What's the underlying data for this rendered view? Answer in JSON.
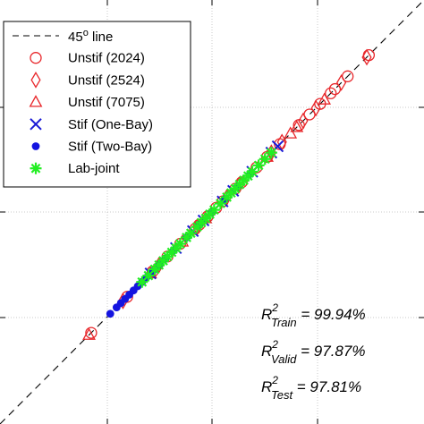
{
  "chart_data": {
    "type": "scatter",
    "title": "",
    "xlabel": "",
    "ylabel": "",
    "xlim": [
      0,
      1
    ],
    "ylim": [
      0,
      1
    ],
    "grid": true,
    "legend_position": "top-left",
    "colors": {
      "unstif": "#e8262a",
      "stif_one": "#1a1ad6",
      "stif_two": "#1414e0",
      "lab": "#22ee22",
      "reference": "#000000"
    },
    "reference_line": {
      "label": "45",
      "label_sup": "o",
      "label_suffix": " line",
      "style": "dashed"
    },
    "series": [
      {
        "name": "Unstif (2024)",
        "marker": "circle",
        "color": "#e8262a",
        "points": [
          [
            0.215,
            0.215
          ],
          [
            0.3,
            0.3
          ],
          [
            0.36,
            0.36
          ],
          [
            0.395,
            0.395
          ],
          [
            0.425,
            0.425
          ],
          [
            0.46,
            0.46
          ],
          [
            0.47,
            0.47
          ],
          [
            0.49,
            0.49
          ],
          [
            0.51,
            0.51
          ],
          [
            0.525,
            0.525
          ],
          [
            0.555,
            0.555
          ],
          [
            0.57,
            0.57
          ],
          [
            0.605,
            0.605
          ],
          [
            0.63,
            0.63
          ],
          [
            0.66,
            0.66
          ],
          [
            0.705,
            0.705
          ],
          [
            0.73,
            0.73
          ],
          [
            0.755,
            0.755
          ],
          [
            0.78,
            0.78
          ],
          [
            0.79,
            0.79
          ],
          [
            0.82,
            0.82
          ],
          [
            0.87,
            0.87
          ]
        ]
      },
      {
        "name": "Unstif (2524)",
        "marker": "diamond",
        "color": "#e8262a",
        "points": [
          [
            0.29,
            0.29
          ],
          [
            0.375,
            0.375
          ],
          [
            0.465,
            0.465
          ],
          [
            0.535,
            0.535
          ],
          [
            0.565,
            0.565
          ],
          [
            0.64,
            0.64
          ],
          [
            0.665,
            0.665
          ],
          [
            0.715,
            0.715
          ],
          [
            0.745,
            0.745
          ],
          [
            0.805,
            0.805
          ],
          [
            0.865,
            0.865
          ]
        ]
      },
      {
        "name": "Unstif (7075)",
        "marker": "triangle",
        "color": "#e8262a",
        "points": [
          [
            0.21,
            0.21
          ],
          [
            0.355,
            0.355
          ],
          [
            0.43,
            0.43
          ],
          [
            0.485,
            0.485
          ],
          [
            0.63,
            0.63
          ],
          [
            0.685,
            0.685
          ],
          [
            0.7,
            0.7
          ],
          [
            0.765,
            0.765
          ]
        ]
      },
      {
        "name": "Stif (One-Bay)",
        "marker": "x",
        "color": "#1a1ad6",
        "points": [
          [
            0.355,
            0.355
          ],
          [
            0.415,
            0.415
          ],
          [
            0.455,
            0.455
          ],
          [
            0.48,
            0.48
          ],
          [
            0.525,
            0.525
          ],
          [
            0.55,
            0.55
          ],
          [
            0.595,
            0.595
          ],
          [
            0.64,
            0.64
          ],
          [
            0.655,
            0.655
          ]
        ]
      },
      {
        "name": "Stif (Two-Bay)",
        "marker": "dot",
        "color": "#1414e0",
        "points": [
          [
            0.26,
            0.26
          ],
          [
            0.275,
            0.275
          ],
          [
            0.285,
            0.285
          ],
          [
            0.295,
            0.295
          ],
          [
            0.305,
            0.305
          ],
          [
            0.315,
            0.315
          ],
          [
            0.325,
            0.325
          ],
          [
            0.335,
            0.335
          ],
          [
            0.345,
            0.345
          ],
          [
            0.36,
            0.36
          ],
          [
            0.375,
            0.375
          ],
          [
            0.39,
            0.39
          ],
          [
            0.41,
            0.41
          ],
          [
            0.44,
            0.44
          ],
          [
            0.47,
            0.47
          ],
          [
            0.5,
            0.5
          ],
          [
            0.53,
            0.53
          ],
          [
            0.56,
            0.56
          ],
          [
            0.59,
            0.59
          ]
        ]
      },
      {
        "name": "Lab-joint",
        "marker": "asterisk",
        "color": "#22ee22",
        "points": [
          [
            0.335,
            0.335
          ],
          [
            0.35,
            0.35
          ],
          [
            0.365,
            0.365
          ],
          [
            0.375,
            0.375
          ],
          [
            0.385,
            0.385
          ],
          [
            0.395,
            0.395
          ],
          [
            0.405,
            0.405
          ],
          [
            0.415,
            0.415
          ],
          [
            0.425,
            0.425
          ],
          [
            0.44,
            0.44
          ],
          [
            0.45,
            0.45
          ],
          [
            0.465,
            0.465
          ],
          [
            0.475,
            0.475
          ],
          [
            0.485,
            0.485
          ],
          [
            0.495,
            0.495
          ],
          [
            0.505,
            0.505
          ],
          [
            0.52,
            0.52
          ],
          [
            0.535,
            0.535
          ],
          [
            0.545,
            0.545
          ],
          [
            0.555,
            0.555
          ],
          [
            0.565,
            0.565
          ],
          [
            0.575,
            0.575
          ],
          [
            0.585,
            0.585
          ],
          [
            0.595,
            0.595
          ],
          [
            0.61,
            0.61
          ],
          [
            0.625,
            0.625
          ],
          [
            0.64,
            0.64
          ]
        ]
      }
    ],
    "annotations": [
      {
        "base": "R",
        "sup": "2",
        "sub": "Train",
        "value": " = 99.94%"
      },
      {
        "base": "R",
        "sup": "2",
        "sub": "Valid",
        "value": " = 97.87%"
      },
      {
        "base": "R",
        "sup": "2",
        "sub": "Test",
        "value": " = 97.81%"
      }
    ]
  }
}
